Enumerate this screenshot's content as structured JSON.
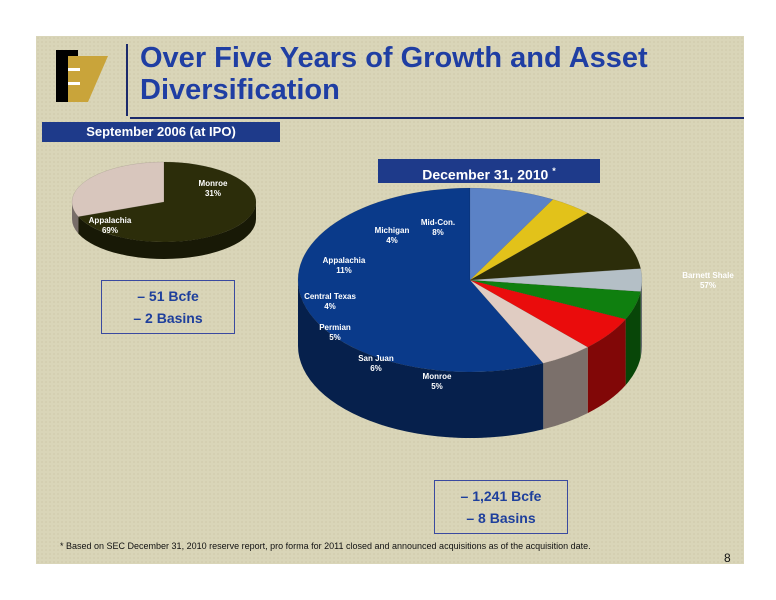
{
  "title": "Over Five Years of Growth and Asset Diversification",
  "footnote": "* Based on SEC December 31, 2010 reserve report, pro forma for 2011 closed and announced acquisitions as of the acquisition date.",
  "page_number": "8",
  "chart_data": [
    {
      "type": "pie",
      "title": "September 2006 (at IPO)",
      "categories": [
        "Monroe",
        "Appalachia"
      ],
      "values": [
        31,
        69
      ],
      "value_labels": [
        "31%",
        "69%"
      ],
      "colors": [
        "#d8c6bd",
        "#2c2d0a"
      ],
      "stats": [
        "– 51 Bcfe",
        "– 2 Basins"
      ]
    },
    {
      "type": "pie",
      "title": "December 31, 2010",
      "title_marker": "*",
      "categories": [
        "Barnett Shale",
        "Monroe",
        "San Juan",
        "Permian",
        "Central Texas",
        "Appalachia",
        "Michigan",
        "Mid-Con."
      ],
      "values": [
        57,
        5,
        6,
        5,
        4,
        11,
        4,
        8
      ],
      "value_labels": [
        "57%",
        "5%",
        "6%",
        "5%",
        "4%",
        "11%",
        "4%",
        "8%"
      ],
      "colors": [
        "#0a3a8a",
        "#e0ccc2",
        "#ea0c0c",
        "#0f7f0f",
        "#b4bfc6",
        "#2c2d0a",
        "#e2c21a",
        "#5b82c6"
      ],
      "stats": [
        "– 1,241 Bcfe",
        "– 8 Basins"
      ]
    }
  ]
}
